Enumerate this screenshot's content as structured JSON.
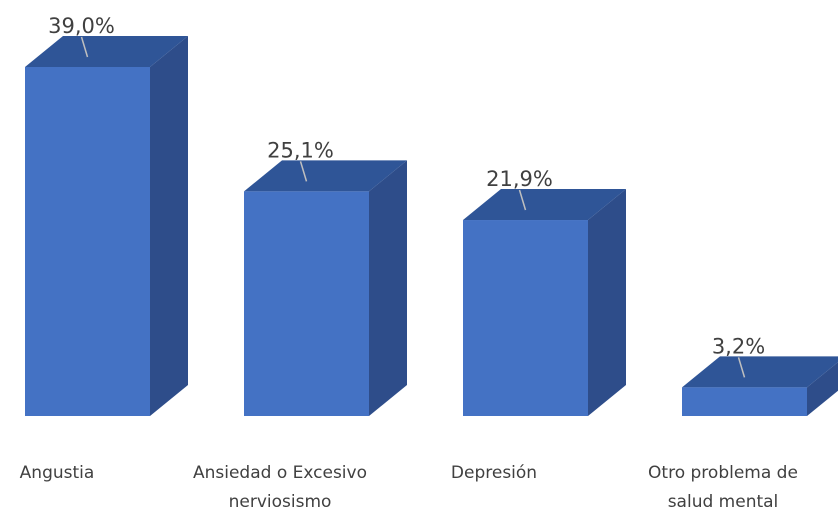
{
  "chart_data": {
    "type": "bar",
    "style": "3d-column",
    "categories": [
      "Angustia",
      "Ansiedad o Excesivo nerviosismo",
      "Depresión",
      "Otro problema de salud mental"
    ],
    "category_lines": [
      [
        "Angustia"
      ],
      [
        "Ansiedad o Excesivo",
        "nerviosismo"
      ],
      [
        "Depresión"
      ],
      [
        "Otro problema de",
        "salud mental"
      ]
    ],
    "values": [
      39.0,
      25.1,
      21.9,
      3.2
    ],
    "value_labels": [
      "39,0%",
      "25,1%",
      "21,9%",
      "3,2%"
    ],
    "unit": "%",
    "ylim": [
      0,
      39.0
    ],
    "grid": false,
    "legend": "none"
  },
  "colors": {
    "bar_front": "#4472C4",
    "bar_top": "#2F5597",
    "bar_side": "#2E4D8A",
    "leader_line": "#BFBFBF",
    "label_text": "#404040"
  }
}
